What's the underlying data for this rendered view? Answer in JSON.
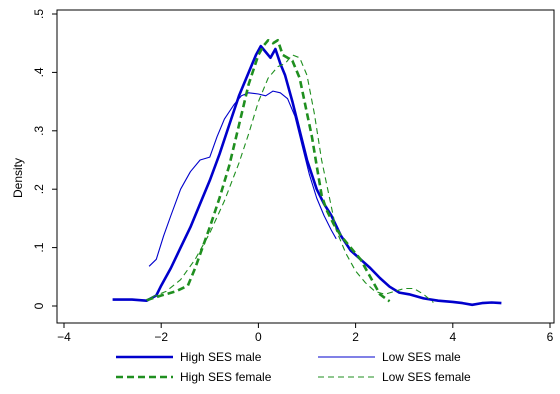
{
  "chart_data": {
    "type": "line",
    "title": "",
    "xlabel": "",
    "ylabel": "Density",
    "xlim": [
      -4,
      6
    ],
    "ylim": [
      0,
      0.5
    ],
    "x_ticks": [
      -4,
      -2,
      0,
      2,
      4,
      6
    ],
    "x_tick_labels": [
      "−4",
      "−2",
      "0",
      "2",
      "4",
      "6"
    ],
    "y_ticks": [
      0,
      0.1,
      0.2,
      0.3,
      0.4,
      0.5
    ],
    "y_tick_labels": [
      "0",
      ".1",
      ".2",
      ".3",
      ".4",
      ".5"
    ],
    "grid": false,
    "legend_position": "bottom",
    "series": [
      {
        "name": "High SES male",
        "color": "#0000cc",
        "dash": "solid",
        "weight": "thick",
        "points": [
          [
            -3.0,
            0.011
          ],
          [
            -2.6,
            0.011
          ],
          [
            -2.3,
            0.009
          ],
          [
            -2.1,
            0.018
          ],
          [
            -2.0,
            0.035
          ],
          [
            -1.8,
            0.065
          ],
          [
            -1.6,
            0.1
          ],
          [
            -1.4,
            0.135
          ],
          [
            -1.2,
            0.175
          ],
          [
            -1.0,
            0.215
          ],
          [
            -0.8,
            0.26
          ],
          [
            -0.6,
            0.31
          ],
          [
            -0.4,
            0.36
          ],
          [
            -0.2,
            0.4
          ],
          [
            -0.05,
            0.43
          ],
          [
            0.05,
            0.445
          ],
          [
            0.15,
            0.435
          ],
          [
            0.25,
            0.425
          ],
          [
            0.35,
            0.44
          ],
          [
            0.45,
            0.415
          ],
          [
            0.55,
            0.395
          ],
          [
            0.7,
            0.35
          ],
          [
            0.85,
            0.3
          ],
          [
            1.0,
            0.25
          ],
          [
            1.2,
            0.2
          ],
          [
            1.35,
            0.175
          ],
          [
            1.5,
            0.155
          ],
          [
            1.7,
            0.12
          ],
          [
            1.9,
            0.095
          ],
          [
            2.1,
            0.08
          ],
          [
            2.3,
            0.065
          ],
          [
            2.5,
            0.048
          ],
          [
            2.7,
            0.033
          ],
          [
            2.9,
            0.023
          ],
          [
            3.1,
            0.02
          ],
          [
            3.4,
            0.013
          ],
          [
            3.7,
            0.009
          ],
          [
            4.0,
            0.007
          ],
          [
            4.2,
            0.005
          ],
          [
            4.4,
            0.002
          ],
          [
            4.6,
            0.005
          ],
          [
            4.8,
            0.006
          ],
          [
            5.0,
            0.005
          ]
        ]
      },
      {
        "name": "Low SES male",
        "color": "#0000cc",
        "dash": "solid",
        "weight": "thin",
        "points": [
          [
            -2.25,
            0.068
          ],
          [
            -2.1,
            0.08
          ],
          [
            -1.95,
            0.12
          ],
          [
            -1.8,
            0.155
          ],
          [
            -1.6,
            0.2
          ],
          [
            -1.4,
            0.23
          ],
          [
            -1.2,
            0.25
          ],
          [
            -1.0,
            0.255
          ],
          [
            -0.85,
            0.29
          ],
          [
            -0.7,
            0.32
          ],
          [
            -0.5,
            0.345
          ],
          [
            -0.35,
            0.36
          ],
          [
            -0.2,
            0.365
          ],
          [
            0.0,
            0.363
          ],
          [
            0.15,
            0.36
          ],
          [
            0.3,
            0.368
          ],
          [
            0.45,
            0.365
          ],
          [
            0.6,
            0.355
          ],
          [
            0.75,
            0.325
          ],
          [
            0.9,
            0.275
          ],
          [
            1.05,
            0.225
          ],
          [
            1.2,
            0.185
          ],
          [
            1.35,
            0.155
          ],
          [
            1.5,
            0.13
          ],
          [
            1.6,
            0.115
          ]
        ]
      },
      {
        "name": "High SES female",
        "color": "#1f8f1f",
        "dash": "dashed",
        "weight": "thick",
        "points": [
          [
            -2.3,
            0.01
          ],
          [
            -2.0,
            0.018
          ],
          [
            -1.7,
            0.025
          ],
          [
            -1.45,
            0.035
          ],
          [
            -1.3,
            0.065
          ],
          [
            -1.15,
            0.1
          ],
          [
            -1.0,
            0.135
          ],
          [
            -0.8,
            0.185
          ],
          [
            -0.6,
            0.24
          ],
          [
            -0.4,
            0.31
          ],
          [
            -0.2,
            0.38
          ],
          [
            0.0,
            0.43
          ],
          [
            0.1,
            0.445
          ],
          [
            0.2,
            0.455
          ],
          [
            0.3,
            0.45
          ],
          [
            0.4,
            0.455
          ],
          [
            0.5,
            0.43
          ],
          [
            0.6,
            0.425
          ],
          [
            0.7,
            0.42
          ],
          [
            0.85,
            0.39
          ],
          [
            1.0,
            0.33
          ],
          [
            1.1,
            0.29
          ],
          [
            1.2,
            0.24
          ],
          [
            1.3,
            0.19
          ],
          [
            1.4,
            0.165
          ],
          [
            1.55,
            0.14
          ],
          [
            1.7,
            0.12
          ],
          [
            1.9,
            0.1
          ],
          [
            2.1,
            0.08
          ],
          [
            2.3,
            0.05
          ],
          [
            2.5,
            0.02
          ],
          [
            2.7,
            0.008
          ]
        ]
      },
      {
        "name": "Low SES female",
        "color": "#1f8f1f",
        "dash": "dashed",
        "weight": "thin",
        "points": [
          [
            -2.2,
            0.015
          ],
          [
            -1.9,
            0.025
          ],
          [
            -1.6,
            0.045
          ],
          [
            -1.3,
            0.08
          ],
          [
            -1.0,
            0.125
          ],
          [
            -0.7,
            0.18
          ],
          [
            -0.4,
            0.245
          ],
          [
            -0.2,
            0.295
          ],
          [
            0.0,
            0.35
          ],
          [
            0.2,
            0.39
          ],
          [
            0.4,
            0.41
          ],
          [
            0.55,
            0.415
          ],
          [
            0.7,
            0.43
          ],
          [
            0.85,
            0.425
          ],
          [
            1.0,
            0.395
          ],
          [
            1.15,
            0.33
          ],
          [
            1.3,
            0.25
          ],
          [
            1.45,
            0.19
          ],
          [
            1.6,
            0.13
          ],
          [
            1.8,
            0.09
          ],
          [
            2.0,
            0.06
          ],
          [
            2.2,
            0.04
          ],
          [
            2.4,
            0.025
          ],
          [
            2.6,
            0.02
          ],
          [
            2.8,
            0.025
          ],
          [
            3.0,
            0.03
          ],
          [
            3.2,
            0.03
          ],
          [
            3.4,
            0.02
          ],
          [
            3.6,
            0.006
          ]
        ]
      }
    ]
  }
}
